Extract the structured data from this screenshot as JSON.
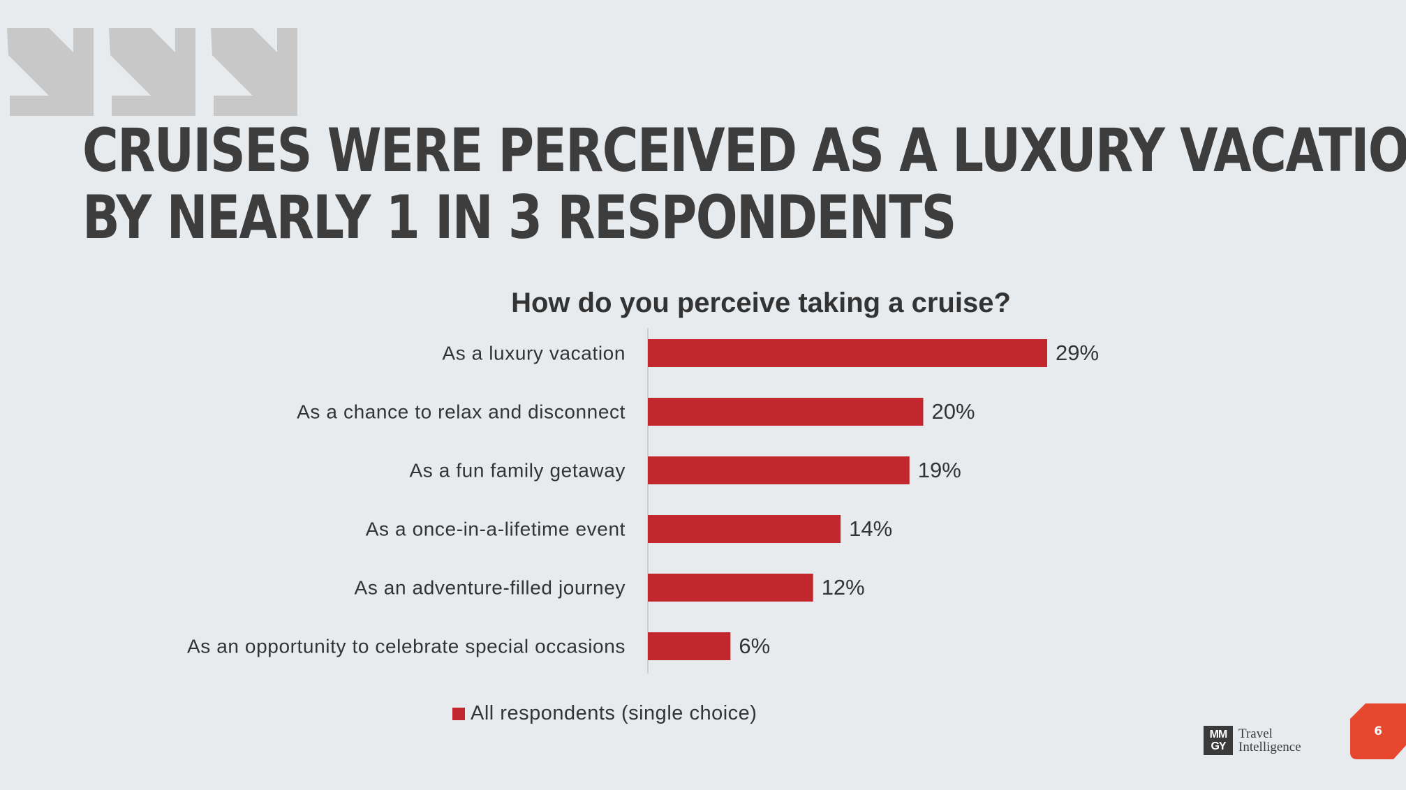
{
  "headline": {
    "line1": "CRUISES WERE PERCEIVED AS A LUXURY VACATION",
    "line2": "BY NEARLY 1 IN 3 RESPONDENTS"
  },
  "colors": {
    "bar": "#c1272d",
    "arrows": "#c8c8c8",
    "badge": "#e8472f",
    "axis": "#cfcfcf"
  },
  "chart_data": {
    "type": "bar",
    "orientation": "horizontal",
    "title": "How do you perceive taking a cruise?",
    "categories": [
      "As a luxury vacation",
      "As a chance to relax and disconnect",
      "As a fun family getaway",
      "As a once-in-a-lifetime event",
      "As an adventure-filled journey",
      "As an opportunity to celebrate special occasions"
    ],
    "series": [
      {
        "name": "All respondents (single choice)",
        "values": [
          29,
          20,
          19,
          14,
          12,
          6
        ],
        "labels": [
          "29%",
          "20%",
          "19%",
          "14%",
          "12%",
          "6%"
        ]
      }
    ],
    "xlim": [
      0,
      29
    ],
    "grid": false,
    "legend": "bottom"
  },
  "logo": {
    "mark_top": "MM",
    "mark_bottom": "GY",
    "line1": "Travel",
    "line2": "Intelligence"
  },
  "page_number": "6"
}
